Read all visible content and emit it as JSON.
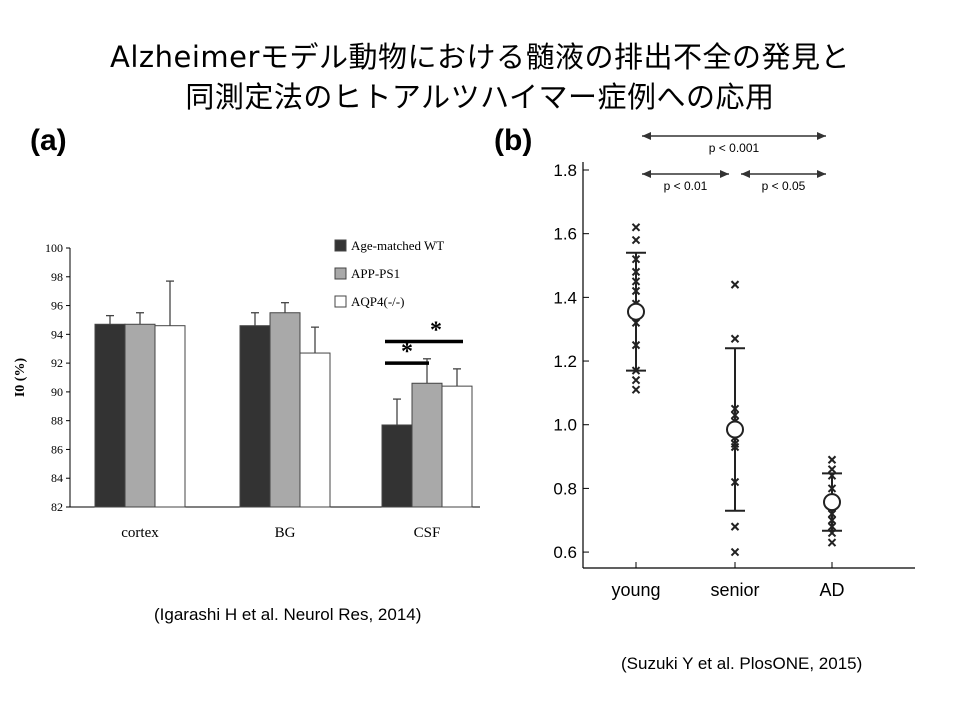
{
  "slide": {
    "title_line1": "Alzheimerモデル動物における髄液の排出不全の発見と",
    "title_line2": "同測定法のヒトアルツハイマー症例への応用",
    "panel_a_label": "(a)",
    "panel_b_label": "(b)",
    "citation_a": "(Igarashi H et al. Neurol Res, 2014)",
    "citation_b": "(Suzuki  Y et al. PlosONE, 2015)"
  },
  "chart_data": [
    {
      "type": "bar",
      "categories": [
        "cortex",
        "BG",
        "CSF"
      ],
      "ylabel": "I0 (%)",
      "ylim": [
        82,
        100
      ],
      "yticks": [
        82,
        84,
        86,
        88,
        90,
        92,
        94,
        96,
        98,
        100
      ],
      "ytick_labels": [
        "82",
        "84",
        "86",
        "88",
        "90",
        "92",
        "94",
        "96",
        "98",
        "100"
      ],
      "legend_position": "top-right",
      "series": [
        {
          "name": "Age-matched WT",
          "color": "#333333",
          "values": [
            94.7,
            94.6,
            87.7
          ],
          "errors": [
            0.6,
            0.9,
            1.8
          ]
        },
        {
          "name": "APP-PS1",
          "color": "#a9a9a9",
          "values": [
            94.7,
            95.5,
            90.6
          ],
          "errors": [
            0.8,
            0.7,
            1.7
          ]
        },
        {
          "name": "AQP4(-/-)",
          "color": "#ffffff",
          "values": [
            94.6,
            92.7,
            90.4
          ],
          "errors": [
            3.1,
            1.8,
            1.2
          ]
        }
      ],
      "annotations": [
        {
          "from": "Age-matched WT",
          "to": "APP-PS1",
          "category": "CSF",
          "text": "*"
        },
        {
          "from": "Age-matched WT",
          "to": "AQP4(-/-)",
          "category": "CSF",
          "text": "*"
        }
      ]
    },
    {
      "type": "scatter",
      "categories": [
        "young",
        "senior",
        "AD"
      ],
      "ylim": [
        0.55,
        1.8
      ],
      "yticks": [
        0.6,
        0.8,
        1.0,
        1.2,
        1.4,
        1.6,
        1.8
      ],
      "ytick_labels": [
        "0.6",
        "0.8",
        "1.0",
        "1.2",
        "1.4",
        "1.6",
        "1.8"
      ],
      "points": {
        "young": [
          1.62,
          1.58,
          1.52,
          1.48,
          1.45,
          1.42,
          1.38,
          1.35,
          1.32,
          1.25,
          1.17,
          1.14,
          1.11
        ],
        "senior": [
          1.44,
          1.27,
          1.05,
          1.03,
          1.01,
          0.98,
          0.96,
          0.94,
          0.93,
          0.82,
          0.68,
          0.6
        ],
        "AD": [
          0.89,
          0.86,
          0.84,
          0.8,
          0.77,
          0.74,
          0.72,
          0.7,
          0.68,
          0.66,
          0.63
        ]
      },
      "means": [
        1.355,
        0.985,
        0.757
      ],
      "sd": [
        0.185,
        0.255,
        0.09
      ],
      "comparisons": [
        {
          "from": "young",
          "to": "AD",
          "text": "p < 0.001",
          "level": 1.92
        },
        {
          "from": "young",
          "to": "senior",
          "text": "p < 0.01",
          "level": 1.8
        },
        {
          "from": "senior",
          "to": "AD",
          "text": "p < 0.05",
          "level": 1.8
        }
      ]
    }
  ]
}
